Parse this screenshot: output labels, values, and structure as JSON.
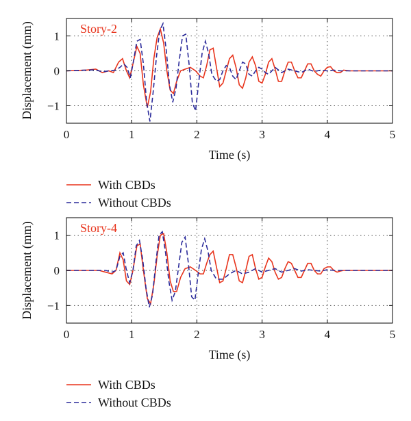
{
  "colors": {
    "with": "#e8341c",
    "without": "#2a2a9a",
    "panel_label": "#e8341c"
  },
  "chart_data": [
    {
      "type": "line",
      "panel_label": "Story-2",
      "xlabel": "Time (s)",
      "ylabel": "Displacement (mm)",
      "xlim": [
        0,
        5
      ],
      "ylim": [
        -1.5,
        1.5
      ],
      "xticks": [
        0,
        1,
        2,
        3,
        4,
        5
      ],
      "yticks": [
        -1,
        0,
        1
      ],
      "grid": true,
      "legend_position": "below",
      "series": [
        {
          "name": "With CBDs",
          "style": "solid",
          "x": [
            0,
            0.3,
            0.45,
            0.55,
            0.65,
            0.72,
            0.8,
            0.86,
            0.92,
            0.97,
            1.02,
            1.08,
            1.13,
            1.18,
            1.24,
            1.29,
            1.34,
            1.39,
            1.44,
            1.49,
            1.54,
            1.59,
            1.64,
            1.69,
            1.75,
            1.82,
            1.9,
            1.98,
            2.05,
            2.1,
            2.15,
            2.2,
            2.25,
            2.3,
            2.35,
            2.4,
            2.45,
            2.5,
            2.55,
            2.6,
            2.65,
            2.7,
            2.75,
            2.8,
            2.85,
            2.9,
            2.95,
            3.0,
            3.05,
            3.1,
            3.15,
            3.2,
            3.25,
            3.3,
            3.35,
            3.4,
            3.45,
            3.5,
            3.55,
            3.6,
            3.65,
            3.7,
            3.75,
            3.8,
            3.85,
            3.9,
            3.95,
            4.0,
            4.05,
            4.1,
            4.15,
            4.2,
            4.25,
            4.35,
            4.5,
            5.0
          ],
          "y": [
            0,
            0.02,
            0.05,
            -0.05,
            0.0,
            -0.05,
            0.25,
            0.35,
            0.0,
            -0.2,
            0.2,
            0.7,
            0.5,
            -0.4,
            -1.05,
            -0.6,
            0.35,
            0.95,
            1.2,
            0.8,
            0.0,
            -0.55,
            -0.65,
            -0.3,
            0.0,
            0.05,
            0.1,
            0.0,
            -0.15,
            -0.2,
            0.15,
            0.6,
            0.65,
            0.1,
            -0.45,
            -0.35,
            0.0,
            0.35,
            0.45,
            0.1,
            -0.4,
            -0.5,
            -0.2,
            0.25,
            0.4,
            0.15,
            -0.3,
            -0.35,
            -0.1,
            0.25,
            0.35,
            0.05,
            -0.3,
            -0.3,
            0.0,
            0.25,
            0.25,
            0.0,
            -0.2,
            -0.2,
            0.0,
            0.2,
            0.2,
            0.0,
            -0.1,
            -0.15,
            0.0,
            0.1,
            0.12,
            0.0,
            -0.05,
            -0.05,
            0.02,
            0.0,
            0.0,
            0.0
          ]
        },
        {
          "name": "Without CBDs",
          "style": "dashed",
          "x": [
            0,
            0.3,
            0.45,
            0.55,
            0.65,
            0.75,
            0.82,
            0.88,
            0.93,
            0.98,
            1.03,
            1.08,
            1.13,
            1.18,
            1.23,
            1.28,
            1.33,
            1.38,
            1.43,
            1.48,
            1.53,
            1.58,
            1.63,
            1.68,
            1.73,
            1.78,
            1.83,
            1.88,
            1.93,
            1.98,
            2.03,
            2.08,
            2.13,
            2.18,
            2.23,
            2.3,
            2.35,
            2.4,
            2.45,
            2.5,
            2.55,
            2.6,
            2.65,
            2.7,
            2.75,
            2.8,
            2.85,
            2.9,
            2.95,
            3.0,
            3.05,
            3.1,
            3.2,
            3.3,
            3.4,
            3.5,
            3.6,
            3.7,
            3.8,
            3.9,
            4.0,
            4.1,
            4.2,
            4.3,
            4.5,
            5.0
          ],
          "y": [
            0,
            0.02,
            0.03,
            -0.03,
            0.0,
            0.02,
            0.1,
            0.2,
            0.1,
            -0.2,
            0.3,
            0.85,
            0.9,
            0.2,
            -0.9,
            -1.45,
            -0.6,
            0.4,
            1.15,
            1.35,
            0.6,
            -0.4,
            -0.9,
            -0.5,
            0.3,
            1.0,
            1.05,
            0.2,
            -0.9,
            -1.15,
            -0.3,
            0.5,
            0.85,
            0.5,
            -0.1,
            -0.3,
            -0.25,
            0.0,
            0.15,
            0.1,
            -0.15,
            -0.25,
            0.0,
            0.25,
            0.2,
            -0.1,
            -0.15,
            0.0,
            0.1,
            0.05,
            -0.05,
            -0.1,
            0.1,
            -0.05,
            0.05,
            0.0,
            -0.05,
            0.05,
            -0.02,
            0.02,
            0.0,
            0.02,
            0.0,
            0.0,
            0.0,
            0.0
          ]
        }
      ]
    },
    {
      "type": "line",
      "panel_label": "Story-4",
      "xlabel": "Time (s)",
      "ylabel": "Displacement (mm)",
      "xlim": [
        0,
        5
      ],
      "ylim": [
        -1.5,
        1.5
      ],
      "xticks": [
        0,
        1,
        2,
        3,
        4,
        5
      ],
      "yticks": [
        -1,
        0,
        1
      ],
      "grid": true,
      "legend_position": "below",
      "series": [
        {
          "name": "With CBDs",
          "style": "solid",
          "x": [
            0,
            0.5,
            0.6,
            0.7,
            0.76,
            0.82,
            0.87,
            0.92,
            0.97,
            1.02,
            1.08,
            1.13,
            1.18,
            1.24,
            1.29,
            1.34,
            1.39,
            1.44,
            1.49,
            1.54,
            1.59,
            1.64,
            1.69,
            1.75,
            1.82,
            1.9,
            1.98,
            2.05,
            2.1,
            2.15,
            2.2,
            2.25,
            2.3,
            2.35,
            2.4,
            2.45,
            2.5,
            2.55,
            2.6,
            2.65,
            2.7,
            2.75,
            2.8,
            2.85,
            2.9,
            2.95,
            3.0,
            3.05,
            3.1,
            3.15,
            3.2,
            3.25,
            3.3,
            3.35,
            3.4,
            3.45,
            3.5,
            3.55,
            3.6,
            3.65,
            3.7,
            3.75,
            3.8,
            3.85,
            3.9,
            3.95,
            4.0,
            4.05,
            4.1,
            4.15,
            4.2,
            4.25,
            4.35,
            4.5,
            5.0
          ],
          "y": [
            0,
            0.0,
            -0.05,
            -0.1,
            0.0,
            0.5,
            0.3,
            -0.3,
            -0.4,
            0.0,
            0.7,
            0.75,
            0.0,
            -0.8,
            -0.95,
            -0.4,
            0.4,
            1.0,
            1.05,
            0.5,
            -0.3,
            -0.6,
            -0.6,
            -0.2,
            0.05,
            0.1,
            0.0,
            -0.1,
            -0.1,
            0.2,
            0.45,
            0.55,
            0.1,
            -0.35,
            -0.3,
            0.05,
            0.45,
            0.45,
            0.1,
            -0.3,
            -0.35,
            0.0,
            0.4,
            0.45,
            0.05,
            -0.25,
            -0.2,
            0.1,
            0.35,
            0.25,
            -0.05,
            -0.25,
            -0.2,
            0.05,
            0.25,
            0.2,
            0.0,
            -0.2,
            -0.2,
            0.0,
            0.2,
            0.2,
            0.0,
            -0.1,
            -0.1,
            0.05,
            0.1,
            0.1,
            0.0,
            -0.05,
            -0.02,
            0.0,
            0.0,
            0.0,
            0.0
          ]
        },
        {
          "name": "Without CBDs",
          "style": "dashed",
          "x": [
            0,
            0.5,
            0.6,
            0.7,
            0.76,
            0.82,
            0.87,
            0.92,
            0.97,
            1.02,
            1.07,
            1.12,
            1.17,
            1.22,
            1.27,
            1.32,
            1.37,
            1.42,
            1.47,
            1.52,
            1.57,
            1.62,
            1.67,
            1.72,
            1.77,
            1.82,
            1.87,
            1.92,
            1.97,
            2.02,
            2.07,
            2.12,
            2.17,
            2.22,
            2.3,
            2.4,
            2.5,
            2.6,
            2.7,
            2.8,
            2.9,
            3.0,
            3.1,
            3.2,
            3.3,
            3.4,
            3.5,
            3.6,
            3.7,
            3.8,
            3.9,
            4.0,
            4.1,
            4.2,
            4.3,
            4.5,
            5.0
          ],
          "y": [
            0,
            0.0,
            0.0,
            -0.05,
            0.0,
            0.4,
            0.5,
            0.0,
            -0.35,
            0.0,
            0.7,
            0.85,
            0.3,
            -0.5,
            -1.05,
            -0.7,
            0.2,
            1.0,
            1.1,
            0.5,
            -0.3,
            -0.85,
            -0.6,
            0.1,
            0.8,
            0.95,
            0.2,
            -0.75,
            -0.85,
            -0.1,
            0.6,
            0.9,
            0.55,
            0.0,
            -0.25,
            -0.25,
            -0.1,
            0.0,
            -0.1,
            -0.05,
            0.05,
            -0.05,
            0.0,
            0.05,
            -0.05,
            0.0,
            0.05,
            -0.02,
            0.02,
            0.0,
            -0.02,
            0.02,
            0.0,
            0.0,
            0.0,
            0.0,
            0.0
          ]
        }
      ]
    }
  ]
}
